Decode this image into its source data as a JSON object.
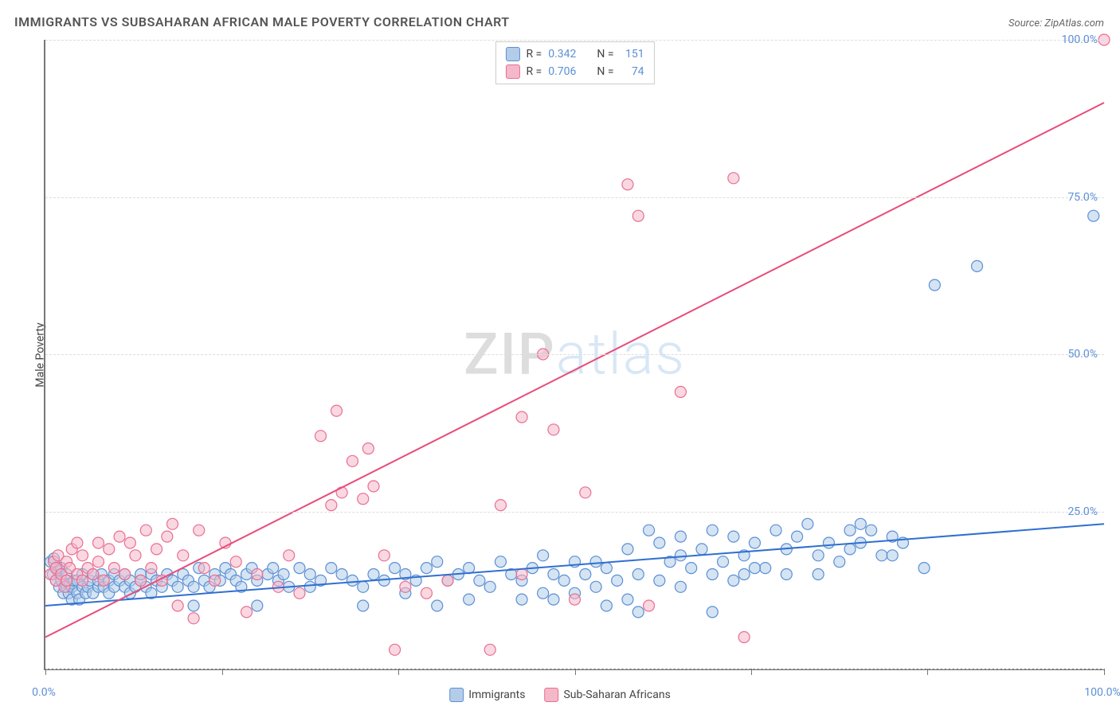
{
  "title": "IMMIGRANTS VS SUBSAHARAN AFRICAN MALE POVERTY CORRELATION CHART",
  "source": "Source: ZipAtlas.com",
  "y_axis_label": "Male Poverty",
  "watermark": {
    "part1": "ZIP",
    "part2": "atlas"
  },
  "chart": {
    "type": "scatter",
    "xlim": [
      0,
      100
    ],
    "ylim": [
      0,
      100
    ],
    "xticks": [
      0,
      100
    ],
    "xtick_labels": [
      "0.0%",
      "100.0%"
    ],
    "vtick_positions": [
      0,
      16.67,
      33.33,
      50,
      66.67,
      83.33,
      100
    ],
    "yticks": [
      25,
      50,
      75,
      100
    ],
    "ytick_labels": [
      "25.0%",
      "50.0%",
      "75.0%",
      "100.0%"
    ],
    "gridlines_y": [
      0,
      25,
      50,
      75,
      100
    ],
    "background_color": "#ffffff",
    "grid_color": "#dddddd",
    "axis_color": "#777777",
    "marker_radius": 7,
    "marker_stroke_width": 1.2,
    "line_width": 2,
    "series": [
      {
        "key": "immigrants",
        "label": "Immigrants",
        "fill": "#b3cde8",
        "stroke": "#5b8fd6",
        "fill_opacity": 0.55,
        "r_value": "0.342",
        "n_value": "151",
        "regression": {
          "x1": 0,
          "y1": 10,
          "x2": 100,
          "y2": 23,
          "color": "#2f6fd0"
        },
        "points": [
          [
            0.5,
            17
          ],
          [
            0.7,
            15
          ],
          [
            0.8,
            17.5
          ],
          [
            1,
            16
          ],
          [
            1,
            14
          ],
          [
            1.2,
            15.5
          ],
          [
            1.3,
            13
          ],
          [
            1.5,
            14
          ],
          [
            1.5,
            16
          ],
          [
            1.7,
            12
          ],
          [
            2,
            13
          ],
          [
            2,
            15
          ],
          [
            2.2,
            12
          ],
          [
            2.3,
            13.5
          ],
          [
            2.5,
            11
          ],
          [
            2.5,
            13
          ],
          [
            2.7,
            14
          ],
          [
            3,
            12
          ],
          [
            3,
            14
          ],
          [
            3.2,
            11
          ],
          [
            3.5,
            13
          ],
          [
            3.5,
            15
          ],
          [
            3.8,
            12
          ],
          [
            4,
            13
          ],
          [
            4.2,
            14
          ],
          [
            4.5,
            15
          ],
          [
            4.5,
            12
          ],
          [
            5,
            13
          ],
          [
            5,
            14
          ],
          [
            5.3,
            15
          ],
          [
            5.5,
            13
          ],
          [
            6,
            12
          ],
          [
            6,
            14
          ],
          [
            6.5,
            15
          ],
          [
            6.5,
            13
          ],
          [
            7,
            14
          ],
          [
            7.5,
            13
          ],
          [
            7.5,
            15
          ],
          [
            8,
            12
          ],
          [
            8,
            14
          ],
          [
            8.5,
            13
          ],
          [
            9,
            14
          ],
          [
            9,
            15
          ],
          [
            9.5,
            13
          ],
          [
            10,
            12
          ],
          [
            10,
            15
          ],
          [
            10.5,
            14
          ],
          [
            11,
            13
          ],
          [
            11.5,
            15
          ],
          [
            12,
            14
          ],
          [
            12.5,
            13
          ],
          [
            13,
            15
          ],
          [
            13.5,
            14
          ],
          [
            14,
            13
          ],
          [
            14.5,
            16
          ],
          [
            15,
            14
          ],
          [
            15.5,
            13
          ],
          [
            16,
            15
          ],
          [
            16.5,
            14
          ],
          [
            17,
            16
          ],
          [
            17.5,
            15
          ],
          [
            18,
            14
          ],
          [
            18.5,
            13
          ],
          [
            19,
            15
          ],
          [
            19.5,
            16
          ],
          [
            20,
            14
          ],
          [
            21,
            15
          ],
          [
            21.5,
            16
          ],
          [
            22,
            14
          ],
          [
            22.5,
            15
          ],
          [
            23,
            13
          ],
          [
            24,
            16
          ],
          [
            25,
            15
          ],
          [
            25,
            13
          ],
          [
            26,
            14
          ],
          [
            27,
            16
          ],
          [
            28,
            15
          ],
          [
            29,
            14
          ],
          [
            30,
            13
          ],
          [
            31,
            15
          ],
          [
            32,
            14
          ],
          [
            33,
            16
          ],
          [
            34,
            15
          ],
          [
            34,
            12
          ],
          [
            35,
            14
          ],
          [
            36,
            16
          ],
          [
            37,
            17
          ],
          [
            38,
            14
          ],
          [
            39,
            15
          ],
          [
            40,
            16
          ],
          [
            41,
            14
          ],
          [
            42,
            13
          ],
          [
            43,
            17
          ],
          [
            44,
            15
          ],
          [
            45,
            14
          ],
          [
            45,
            11
          ],
          [
            46,
            16
          ],
          [
            47,
            18
          ],
          [
            48,
            15
          ],
          [
            49,
            14
          ],
          [
            50,
            17
          ],
          [
            50,
            12
          ],
          [
            51,
            15
          ],
          [
            52,
            13
          ],
          [
            53,
            16
          ],
          [
            54,
            14
          ],
          [
            55,
            11
          ],
          [
            55,
            19
          ],
          [
            56,
            15
          ],
          [
            57,
            22
          ],
          [
            58,
            14
          ],
          [
            59,
            17
          ],
          [
            60,
            21
          ],
          [
            60,
            13
          ],
          [
            61,
            16
          ],
          [
            62,
            19
          ],
          [
            63,
            15
          ],
          [
            63,
            22
          ],
          [
            64,
            17
          ],
          [
            65,
            21
          ],
          [
            65,
            14
          ],
          [
            66,
            18
          ],
          [
            67,
            20
          ],
          [
            68,
            16
          ],
          [
            69,
            22
          ],
          [
            70,
            15
          ],
          [
            70,
            19
          ],
          [
            71,
            21
          ],
          [
            72,
            23
          ],
          [
            73,
            18
          ],
          [
            74,
            20
          ],
          [
            75,
            17
          ],
          [
            76,
            22
          ],
          [
            76,
            19
          ],
          [
            77,
            20
          ],
          [
            78,
            22
          ],
          [
            79,
            18
          ],
          [
            80,
            21
          ],
          [
            83,
            16
          ],
          [
            84,
            61
          ],
          [
            88,
            64
          ],
          [
            99,
            72
          ],
          [
            56,
            9
          ],
          [
            63,
            9
          ],
          [
            14,
            10
          ],
          [
            20,
            10
          ],
          [
            30,
            10
          ],
          [
            40,
            11
          ],
          [
            48,
            11
          ],
          [
            37,
            10
          ],
          [
            52,
            17
          ],
          [
            58,
            20
          ],
          [
            47,
            12
          ],
          [
            53,
            10
          ],
          [
            60,
            18
          ],
          [
            67,
            16
          ],
          [
            73,
            15
          ],
          [
            77,
            23
          ],
          [
            80,
            18
          ],
          [
            81,
            20
          ],
          [
            66,
            15
          ]
        ]
      },
      {
        "key": "subsaharan",
        "label": "Sub-Saharan Africans",
        "fill": "#f5b8c8",
        "stroke": "#e86f92",
        "fill_opacity": 0.55,
        "r_value": "0.706",
        "n_value": "74",
        "regression": {
          "x1": 0,
          "y1": 5,
          "x2": 100,
          "y2": 90,
          "color": "#e84c7a"
        },
        "points": [
          [
            0.5,
            15
          ],
          [
            0.8,
            17
          ],
          [
            1,
            16
          ],
          [
            1,
            14
          ],
          [
            1.2,
            18
          ],
          [
            1.5,
            15
          ],
          [
            1.8,
            13
          ],
          [
            2,
            17
          ],
          [
            2,
            14
          ],
          [
            2.3,
            16
          ],
          [
            2.5,
            19
          ],
          [
            3,
            15
          ],
          [
            3,
            20
          ],
          [
            3.5,
            14
          ],
          [
            3.5,
            18
          ],
          [
            4,
            16
          ],
          [
            4.5,
            15
          ],
          [
            5,
            20
          ],
          [
            5,
            17
          ],
          [
            5.5,
            14
          ],
          [
            6,
            19
          ],
          [
            6.5,
            16
          ],
          [
            7,
            21
          ],
          [
            7.5,
            15
          ],
          [
            8,
            20
          ],
          [
            8.5,
            18
          ],
          [
            9,
            14
          ],
          [
            9.5,
            22
          ],
          [
            10,
            16
          ],
          [
            10.5,
            19
          ],
          [
            11,
            14
          ],
          [
            11.5,
            21
          ],
          [
            12,
            23
          ],
          [
            12.5,
            10
          ],
          [
            13,
            18
          ],
          [
            14,
            8
          ],
          [
            14.5,
            22
          ],
          [
            15,
            16
          ],
          [
            16,
            14
          ],
          [
            17,
            20
          ],
          [
            18,
            17
          ],
          [
            19,
            9
          ],
          [
            20,
            15
          ],
          [
            22,
            13
          ],
          [
            23,
            18
          ],
          [
            24,
            12
          ],
          [
            26,
            37
          ],
          [
            27,
            26
          ],
          [
            27.5,
            41
          ],
          [
            28,
            28
          ],
          [
            29,
            33
          ],
          [
            30,
            27
          ],
          [
            30.5,
            35
          ],
          [
            31,
            29
          ],
          [
            32,
            18
          ],
          [
            33,
            3
          ],
          [
            34,
            13
          ],
          [
            36,
            12
          ],
          [
            38,
            14
          ],
          [
            42,
            3
          ],
          [
            43,
            26
          ],
          [
            45,
            40
          ],
          [
            47,
            50
          ],
          [
            48,
            38
          ],
          [
            50,
            11
          ],
          [
            51,
            28
          ],
          [
            55,
            77
          ],
          [
            56,
            72
          ],
          [
            57,
            10
          ],
          [
            60,
            44
          ],
          [
            65,
            78
          ],
          [
            66,
            5
          ],
          [
            100,
            100
          ],
          [
            45,
            15
          ]
        ]
      }
    ]
  },
  "legend_stats": {
    "r_label": "R =",
    "n_label": "N ="
  },
  "bottom_legend": [
    {
      "label": "Immigrants",
      "fill": "#b3cde8",
      "stroke": "#5b8fd6"
    },
    {
      "label": "Sub-Saharan Africans",
      "fill": "#f5b8c8",
      "stroke": "#e86f92"
    }
  ]
}
